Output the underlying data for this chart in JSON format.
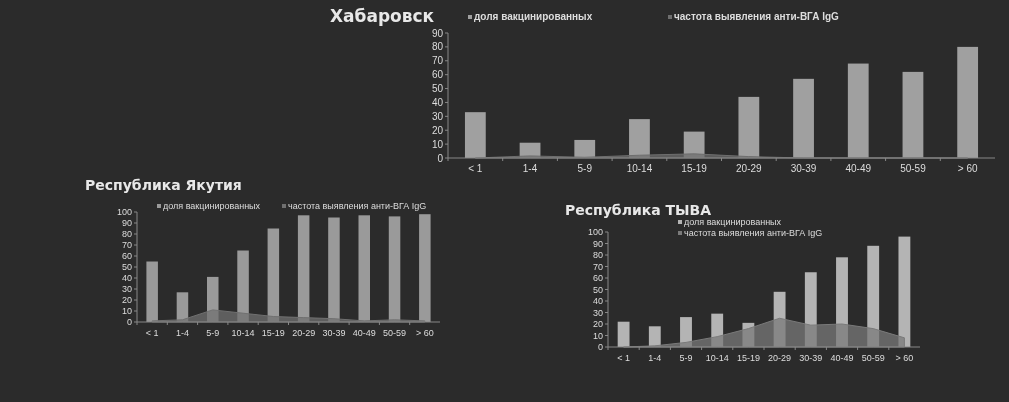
{
  "chart_data": [
    {
      "type": "bar",
      "title": "Хабаровск",
      "categories": [
        "< 1",
        "1-4",
        "5-9",
        "10-14",
        "15-19",
        "20-29",
        "30-39",
        "40-49",
        "50-59",
        "> 60"
      ],
      "ylim": [
        0,
        90
      ],
      "yticks": [
        0,
        10,
        20,
        30,
        40,
        50,
        60,
        70,
        80,
        90
      ],
      "legend": "top",
      "grid": false,
      "series": [
        {
          "name": "доля вакцинированных",
          "color": "#a0a0a0",
          "values": [
            33,
            11,
            13,
            28,
            19,
            44,
            57,
            68,
            62,
            80
          ]
        },
        {
          "name": "частота выявления анти-ВГА IgG",
          "type": "area",
          "color": "#6e6e6e",
          "values": [
            0,
            1.5,
            0.5,
            2,
            3,
            1,
            0,
            0,
            0,
            0
          ]
        }
      ]
    },
    {
      "type": "bar",
      "title": "Республика Якутия",
      "categories": [
        "< 1",
        "1-4",
        "5-9",
        "10-14",
        "15-19",
        "20-29",
        "30-39",
        "40-49",
        "50-59",
        "> 60"
      ],
      "ylim": [
        0,
        100
      ],
      "yticks": [
        0,
        10,
        20,
        30,
        40,
        50,
        60,
        70,
        80,
        90,
        100
      ],
      "legend": "top",
      "grid": false,
      "series": [
        {
          "name": "доля вакцинированных",
          "color": "#9a9a9a",
          "values": [
            55,
            27,
            41,
            65,
            85,
            97,
            95,
            97,
            96,
            98
          ]
        },
        {
          "name": "частота выявления анти-ВГА IgG",
          "type": "area",
          "color": "#707070",
          "values": [
            1,
            2,
            11,
            8,
            5,
            4,
            3,
            1,
            2,
            1
          ]
        }
      ]
    },
    {
      "type": "bar",
      "title": "Республика ТЫВА",
      "categories": [
        "< 1",
        "1-4",
        "5-9",
        "10-14",
        "15-19",
        "20-29",
        "30-39",
        "40-49",
        "50-59",
        "> 60"
      ],
      "ylim": [
        0,
        100
      ],
      "yticks": [
        0,
        10,
        20,
        30,
        40,
        50,
        60,
        70,
        80,
        90,
        100
      ],
      "legend": "top",
      "grid": false,
      "series": [
        {
          "name": "доля вакцинированных",
          "color": "#b4b4b4",
          "values": [
            22,
            18,
            26,
            29,
            21,
            48,
            65,
            78,
            88,
            96
          ]
        },
        {
          "name": "частота выявления анти-ВГА IgG",
          "type": "area",
          "color": "#7a7a7a",
          "values": [
            0,
            1,
            4,
            9,
            16,
            25,
            19,
            20,
            16,
            8
          ]
        }
      ]
    }
  ]
}
